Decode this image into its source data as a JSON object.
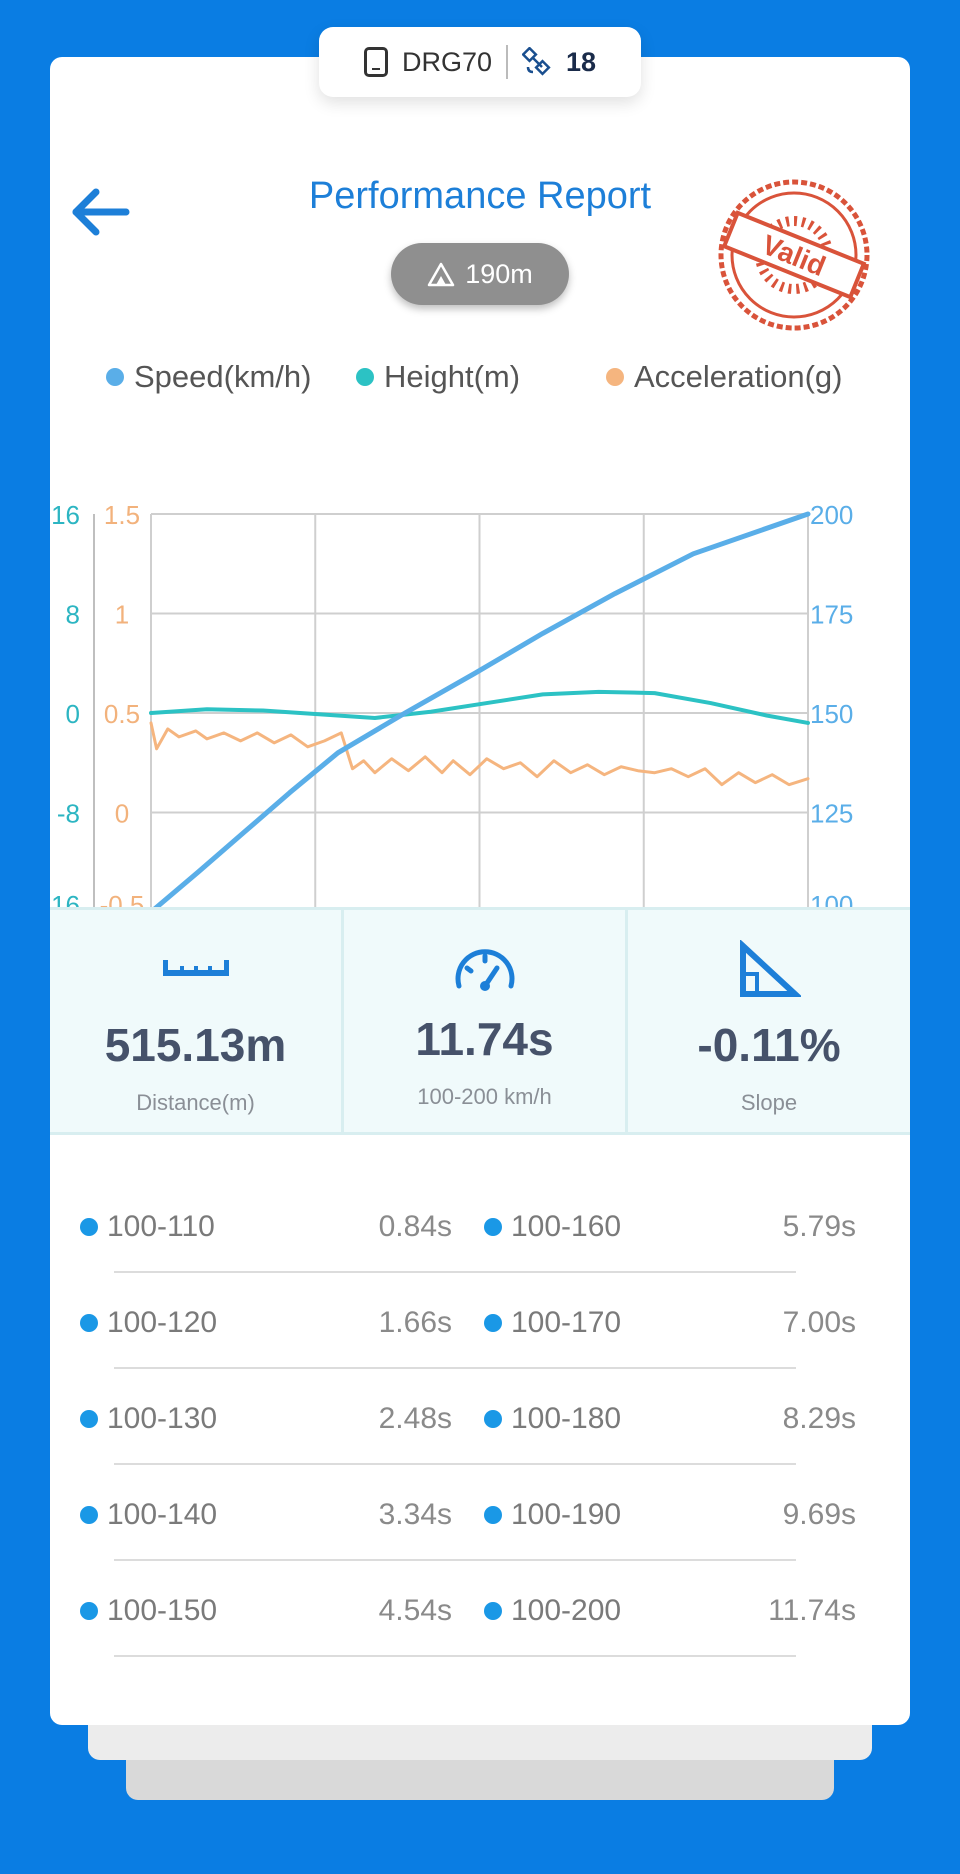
{
  "device": {
    "name": "DRG70",
    "satellites": "18"
  },
  "header": {
    "title": "Performance Report",
    "altitude": "190m",
    "stamp_text": "Valid"
  },
  "legend": [
    {
      "label": "Speed(km/h)",
      "color": "#5aaee8"
    },
    {
      "label": "Height(m)",
      "color": "#2cc2c4"
    },
    {
      "label": "Acceleration(g)",
      "color": "#f5b57f"
    }
  ],
  "chart_data": {
    "type": "line",
    "x_range": [
      0,
      11.74
    ],
    "axes": {
      "height_ticks": [
        "16",
        "8",
        "0",
        "-8",
        "-16"
      ],
      "accel_ticks": [
        "1.5",
        "1",
        "0.5",
        "0",
        "-0.5"
      ],
      "speed_ticks": [
        "200",
        "175",
        "150",
        "125",
        "100"
      ],
      "height_range": [
        -16,
        16
      ],
      "accel_range": [
        -0.5,
        1.5
      ],
      "speed_range": [
        100,
        200
      ]
    },
    "grid": true,
    "series": [
      {
        "name": "Speed(km/h)",
        "axis": "right",
        "color": "#5aaee8",
        "x": [
          0,
          0.84,
          1.66,
          2.48,
          3.34,
          4.54,
          5.79,
          7.0,
          8.29,
          9.69,
          11.74
        ],
        "y": [
          100,
          110,
          120,
          130,
          140,
          150,
          160,
          170,
          180,
          190,
          200
        ]
      },
      {
        "name": "Height(m)",
        "axis": "left-outer",
        "color": "#2cc2c4",
        "x": [
          0,
          1,
          2,
          3,
          4,
          5,
          6,
          7,
          8,
          9,
          10,
          11,
          11.74
        ],
        "y": [
          0.0,
          0.3,
          0.2,
          -0.1,
          -0.4,
          0.1,
          0.8,
          1.5,
          1.7,
          1.6,
          0.8,
          -0.2,
          -0.8
        ]
      },
      {
        "name": "Acceleration(g)",
        "axis": "left-inner",
        "color": "#f5b57f",
        "x": [
          0,
          0.1,
          0.3,
          0.5,
          0.8,
          1.0,
          1.3,
          1.6,
          1.9,
          2.2,
          2.5,
          2.8,
          3.1,
          3.4,
          3.6,
          3.8,
          4.0,
          4.3,
          4.6,
          4.9,
          5.2,
          5.4,
          5.7,
          6.0,
          6.3,
          6.6,
          6.9,
          7.2,
          7.5,
          7.8,
          8.1,
          8.4,
          8.7,
          9.0,
          9.3,
          9.6,
          9.9,
          10.2,
          10.5,
          10.8,
          11.1,
          11.4,
          11.74
        ],
        "y": [
          0.45,
          0.32,
          0.42,
          0.38,
          0.41,
          0.37,
          0.4,
          0.36,
          0.4,
          0.35,
          0.39,
          0.33,
          0.36,
          0.4,
          0.22,
          0.26,
          0.2,
          0.27,
          0.21,
          0.28,
          0.2,
          0.26,
          0.19,
          0.27,
          0.22,
          0.25,
          0.18,
          0.26,
          0.2,
          0.24,
          0.19,
          0.23,
          0.21,
          0.2,
          0.22,
          0.18,
          0.22,
          0.14,
          0.2,
          0.15,
          0.19,
          0.14,
          0.17
        ]
      }
    ]
  },
  "stats": [
    {
      "value": "515.13m",
      "label": "Distance(m)",
      "icon": "ruler-icon"
    },
    {
      "value": "11.74s",
      "label": "100-200 km/h",
      "icon": "speedometer-icon"
    },
    {
      "value": "-0.11%",
      "label": "Slope",
      "icon": "slope-icon"
    }
  ],
  "splits": [
    {
      "left": {
        "range": "100-110",
        "time": "0.84s"
      },
      "right": {
        "range": "100-160",
        "time": "5.79s"
      }
    },
    {
      "left": {
        "range": "100-120",
        "time": "1.66s"
      },
      "right": {
        "range": "100-170",
        "time": "7.00s"
      }
    },
    {
      "left": {
        "range": "100-130",
        "time": "2.48s"
      },
      "right": {
        "range": "100-180",
        "time": "8.29s"
      }
    },
    {
      "left": {
        "range": "100-140",
        "time": "3.34s"
      },
      "right": {
        "range": "100-190",
        "time": "9.69s"
      }
    },
    {
      "left": {
        "range": "100-150",
        "time": "4.54s"
      },
      "right": {
        "range": "100-200",
        "time": "11.74s"
      }
    }
  ]
}
